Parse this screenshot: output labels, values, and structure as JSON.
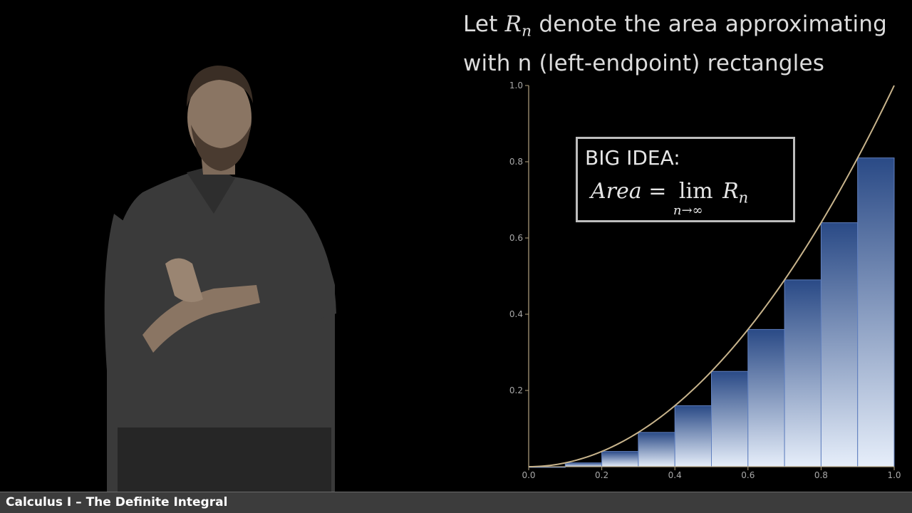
{
  "heading": {
    "before": "Let ",
    "var": "R",
    "sub": "n",
    "after": " denote the area approximating",
    "line2": "with n (left-endpoint) rectangles"
  },
  "big_idea": {
    "label": "BIG IDEA:",
    "lhs": "Area",
    "equals": "=",
    "lim": "lim",
    "lim_sub": "n→∞",
    "rhs_var": "R",
    "rhs_sub": "n"
  },
  "footer": {
    "title": "Calculus I – The Definite Integral"
  },
  "colors": {
    "curve": "#c8b48c",
    "axis": "#b4a482",
    "bar_top": "#2a4a86",
    "bar_bottom": "#e6eefa",
    "bar_edge": "#5f7fbf"
  },
  "chart_data": {
    "type": "bar",
    "function": "x^2",
    "xlim": [
      0,
      1
    ],
    "ylim": [
      0,
      1
    ],
    "xticks": [
      0.0,
      0.2,
      0.4,
      0.6,
      0.8,
      1.0
    ],
    "yticks": [
      0.2,
      0.4,
      0.6,
      0.8,
      1.0
    ],
    "xtick_labels": [
      "0.0",
      "0.2",
      "0.4",
      "0.6",
      "0.8",
      "1.0"
    ],
    "ytick_labels": [
      "0.2",
      "0.4",
      "0.6",
      "0.8",
      "1.0"
    ],
    "rectangles": [
      {
        "x0": 0.0,
        "x1": 0.1,
        "height": 0.0
      },
      {
        "x0": 0.1,
        "x1": 0.2,
        "height": 0.01
      },
      {
        "x0": 0.2,
        "x1": 0.3,
        "height": 0.04
      },
      {
        "x0": 0.3,
        "x1": 0.4,
        "height": 0.09
      },
      {
        "x0": 0.4,
        "x1": 0.5,
        "height": 0.16
      },
      {
        "x0": 0.5,
        "x1": 0.6,
        "height": 0.25
      },
      {
        "x0": 0.6,
        "x1": 0.7,
        "height": 0.36
      },
      {
        "x0": 0.7,
        "x1": 0.8,
        "height": 0.49
      },
      {
        "x0": 0.8,
        "x1": 0.9,
        "height": 0.64
      },
      {
        "x0": 0.9,
        "x1": 1.0,
        "height": 0.81
      }
    ],
    "grid": false
  }
}
